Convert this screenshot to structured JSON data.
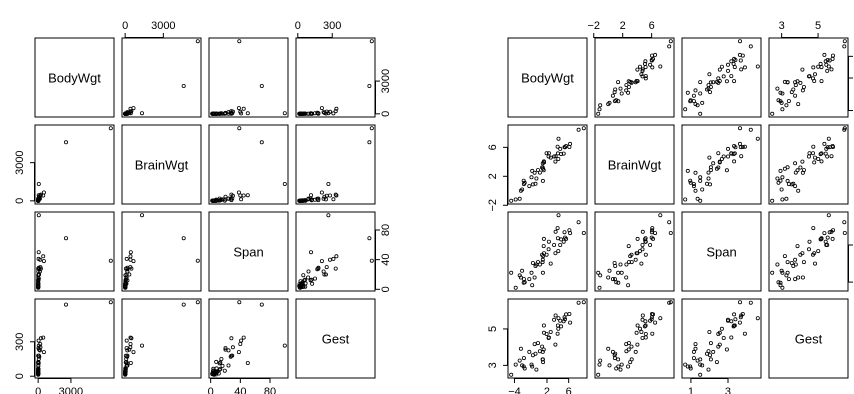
{
  "chart_data": [
    {
      "type": "scatter",
      "title": "",
      "variables": [
        "BodyWgt",
        "BrainWgt",
        "Span",
        "Gest"
      ],
      "ranges": {
        "BodyWgt": [
          0,
          6654
        ],
        "BrainWgt": [
          0,
          5712
        ],
        "Span": [
          2,
          100
        ],
        "Gest": [
          12,
          645
        ]
      },
      "axis_ticks": {
        "BodyWgt": {
          "values": [
            0,
            3000
          ],
          "labels": [
            "0",
            "3000"
          ]
        },
        "BrainWgt": {
          "values": [
            0,
            3000
          ],
          "labels": [
            "0",
            "3000"
          ]
        },
        "Span": {
          "values": [
            0,
            40,
            80
          ],
          "labels": [
            "0",
            "40",
            "80"
          ]
        },
        "Gest": {
          "values": [
            0,
            300
          ],
          "labels": [
            "0",
            "300"
          ]
        }
      },
      "observations": {
        "BodyWgt": [
          6654,
          2547,
          465,
          521,
          250,
          207,
          187,
          160,
          100,
          85,
          62,
          60,
          55.5,
          52.2,
          36.3,
          35,
          27.7,
          14.8,
          10.55,
          10,
          6.8,
          4.235,
          4.19,
          4.05,
          3.6,
          3.5,
          3.385,
          3.3,
          3,
          2,
          1.41,
          1.04,
          0.9,
          0.75,
          0.55,
          0.48,
          0.425,
          0.28,
          0.12,
          0.104,
          0.101,
          0.075,
          0.06,
          0.048,
          0.023,
          0.01
        ],
        "BrainWgt": [
          5712,
          4603,
          423,
          655,
          490,
          406,
          419,
          169,
          157,
          325,
          1320,
          81,
          175,
          440,
          119.5,
          56,
          115,
          98.2,
          179.5,
          115,
          179,
          50.4,
          58,
          17,
          21,
          3.9,
          44.5,
          25.6,
          25,
          12.3,
          17.5,
          5.5,
          2.6,
          12.1,
          2.4,
          15.5,
          6.4,
          1.9,
          3,
          2.5,
          4,
          1.2,
          1,
          0.33,
          0.3,
          0.25
        ],
        "Span": [
          38.6,
          69,
          44.5,
          38,
          28,
          30,
          40,
          24,
          27,
          20,
          100,
          14.5,
          29,
          50,
          41,
          13,
          20,
          7.4,
          24,
          16,
          12,
          13,
          28,
          19,
          11,
          4.5,
          9,
          8,
          12,
          7,
          8,
          7,
          6.5,
          3.5,
          7.6,
          2.3,
          4.5,
          3.2,
          2.7,
          3.2,
          2.6,
          5,
          3.5,
          3.9,
          2,
          4.5
        ],
        "Gest": [
          645,
          624,
          336,
          210,
          330,
          252,
          281,
          225,
          170,
          232,
          267,
          150,
          180,
          115,
          310,
          63,
          245,
          125,
          93,
          90,
          112,
          120,
          179,
          48,
          24,
          28,
          42,
          28,
          56,
          44,
          68,
          16,
          38,
          65,
          35,
          19,
          21,
          42,
          17,
          30,
          19,
          20,
          50,
          26,
          21,
          12
        ]
      }
    },
    {
      "type": "scatter",
      "title": "",
      "variables": [
        "BodyWgt",
        "BrainWgt",
        "Span",
        "Gest"
      ],
      "ranges": {
        "BodyWgt": [
          -4.61,
          8.8
        ],
        "BrainWgt": [
          -1.39,
          8.65
        ],
        "Span": [
          0.69,
          4.61
        ],
        "Gest": [
          2.48,
          6.47
        ]
      },
      "axis_ticks": {
        "BodyWgt": {
          "values": [
            -4,
            2,
            6
          ],
          "labels": [
            "−4",
            "2",
            "6"
          ]
        },
        "BrainWgt": {
          "values": [
            -2,
            2,
            6
          ],
          "labels": [
            "−2",
            "2",
            "6"
          ]
        },
        "Span": {
          "values": [
            1,
            3
          ],
          "labels": [
            "1",
            "3"
          ]
        },
        "Gest": {
          "values": [
            3,
            5
          ],
          "labels": [
            "3",
            "5"
          ]
        }
      },
      "observations": {
        "BodyWgt": [
          8.8,
          7.84,
          6.14,
          6.26,
          5.52,
          5.33,
          5.23,
          5.08,
          4.61,
          4.44,
          4.13,
          4.09,
          4.02,
          3.96,
          3.59,
          3.56,
          3.32,
          2.69,
          2.36,
          2.3,
          1.92,
          1.44,
          1.43,
          1.4,
          1.28,
          1.25,
          1.22,
          1.19,
          1.1,
          0.69,
          0.34,
          0.04,
          -0.11,
          -0.29,
          -0.6,
          -0.73,
          -0.86,
          -1.27,
          -2.12,
          -2.26,
          -2.29,
          -2.59,
          -2.81,
          -3.04,
          -3.77,
          -4.61
        ],
        "BrainWgt": [
          8.65,
          8.43,
          6.05,
          6.48,
          6.19,
          6.01,
          6.04,
          5.13,
          5.06,
          5.78,
          7.19,
          4.39,
          5.16,
          6.09,
          4.78,
          4.03,
          4.74,
          4.59,
          5.19,
          4.74,
          5.19,
          3.92,
          4.06,
          2.83,
          3.04,
          1.36,
          3.8,
          3.24,
          3.22,
          2.51,
          2.86,
          1.7,
          0.96,
          2.49,
          0.88,
          2.74,
          1.86,
          0.64,
          1.1,
          0.92,
          1.39,
          0.18,
          0.0,
          -1.11,
          -1.2,
          -1.39
        ],
        "Span": [
          3.65,
          4.23,
          3.8,
          3.64,
          3.33,
          3.4,
          3.69,
          3.18,
          3.3,
          3.0,
          4.61,
          2.67,
          3.37,
          3.91,
          3.71,
          2.56,
          3.0,
          2.0,
          3.18,
          2.77,
          2.48,
          2.56,
          3.33,
          2.94,
          2.4,
          1.5,
          2.2,
          2.08,
          2.48,
          1.95,
          2.08,
          1.95,
          1.87,
          1.25,
          2.03,
          0.83,
          1.5,
          1.16,
          0.99,
          1.16,
          0.96,
          1.61,
          1.25,
          1.36,
          0.69,
          1.5
        ],
        "Gest": [
          6.47,
          6.44,
          5.82,
          5.35,
          5.8,
          5.53,
          5.64,
          5.42,
          5.14,
          5.45,
          5.59,
          5.01,
          5.19,
          4.74,
          5.74,
          4.14,
          5.5,
          4.83,
          4.53,
          4.5,
          4.72,
          4.79,
          5.19,
          3.87,
          3.18,
          3.33,
          3.74,
          3.33,
          4.03,
          3.78,
          4.22,
          2.77,
          3.64,
          4.17,
          3.56,
          2.94,
          3.04,
          3.74,
          2.83,
          3.4,
          2.94,
          3.0,
          3.91,
          3.26,
          3.04,
          2.48
        ]
      }
    }
  ]
}
